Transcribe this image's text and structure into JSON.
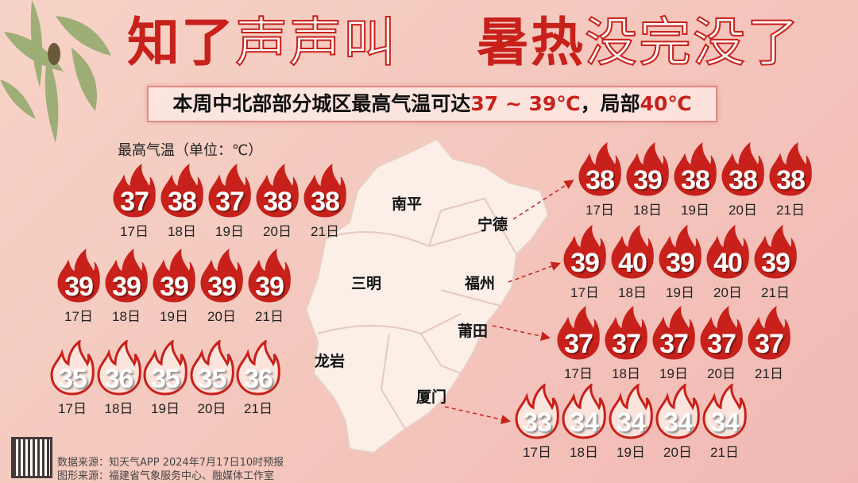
{
  "title": {
    "part1": "知了",
    "part2": "声声叫",
    "part3": "暑热",
    "part4": "没完没了"
  },
  "subtitle": {
    "text": "本周中北部部分城区最高气温可达",
    "range": "37 ~ 39℃",
    "sep": "，局部",
    "max": "40℃"
  },
  "unit_label": "最高气温（单位：℃）",
  "colors": {
    "accent": "#c8201a",
    "background": "#f5cbbf",
    "map": "#fbefe8"
  },
  "cities": [
    {
      "name": "南平",
      "style": "filled",
      "temps": [
        37,
        38,
        37,
        38,
        38
      ]
    },
    {
      "name": "三明",
      "style": "filled",
      "temps": [
        39,
        39,
        39,
        39,
        39
      ]
    },
    {
      "name": "龙岩",
      "style": "outline",
      "temps": [
        35,
        36,
        35,
        35,
        36
      ]
    },
    {
      "name": "宁德",
      "style": "filled",
      "temps": [
        38,
        39,
        38,
        38,
        38
      ]
    },
    {
      "name": "福州",
      "style": "filled",
      "temps": [
        39,
        40,
        39,
        40,
        39
      ]
    },
    {
      "name": "莆田",
      "style": "filled",
      "temps": [
        37,
        37,
        37,
        37,
        37
      ]
    },
    {
      "name": "厦门",
      "style": "outline",
      "temps": [
        33,
        34,
        34,
        34,
        34
      ]
    }
  ],
  "dates": [
    "17日",
    "18日",
    "19日",
    "20日",
    "21日"
  ],
  "footer": {
    "data_source": "数据来源：知天气APP 2024年7月17日10时预报",
    "graphic_source": "图形来源：福建省气象服务中心、融媒体工作室"
  },
  "icons": {
    "flame": "flame-icon",
    "leaves": "bamboo-leaves-icon",
    "cicada": "cicada-icon",
    "qr": "qr-code-icon"
  }
}
